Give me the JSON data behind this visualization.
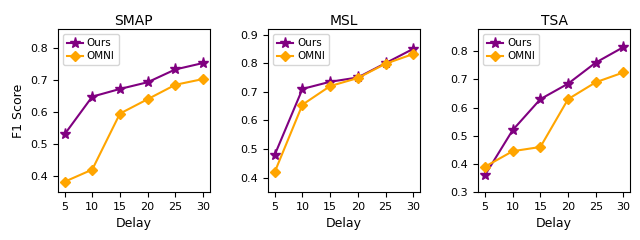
{
  "x": [
    5,
    10,
    15,
    20,
    25,
    30
  ],
  "subplots": [
    {
      "title": "SMAP",
      "ours": [
        0.53,
        0.648,
        0.672,
        0.693,
        0.733,
        0.753
      ],
      "omni": [
        0.382,
        0.42,
        0.595,
        0.64,
        0.685,
        0.703
      ],
      "ylim": [
        0.35,
        0.86
      ]
    },
    {
      "title": "MSL",
      "ours": [
        0.48,
        0.71,
        0.735,
        0.75,
        0.8,
        0.85
      ],
      "omni": [
        0.42,
        0.655,
        0.72,
        0.748,
        0.798,
        0.832
      ],
      "ylim": [
        0.35,
        0.92
      ]
    },
    {
      "title": "TSA",
      "ours": [
        0.36,
        0.52,
        0.63,
        0.685,
        0.76,
        0.815
      ],
      "omni": [
        0.39,
        0.445,
        0.46,
        0.63,
        0.69,
        0.725
      ],
      "ylim": [
        0.3,
        0.88
      ]
    }
  ],
  "color_ours": "#800080",
  "color_omni": "#FFA500",
  "xlabel": "Delay",
  "ylabel": "F1 Score",
  "marker_ours": "*",
  "marker_omni": "D",
  "markersize_ours": 8,
  "markersize_omni": 5,
  "linewidth": 1.5
}
